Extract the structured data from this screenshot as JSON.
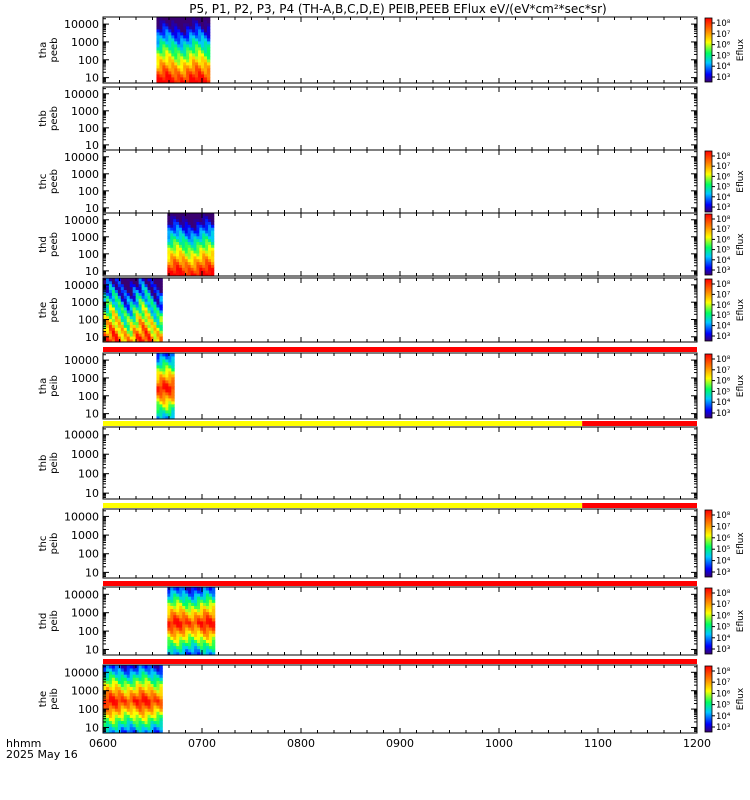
{
  "title": "P5, P1, P2, P3, P4 (TH-A,B,C,D,E) PEIB,PEEB EFlux eV/(eV*cm²*sec*sr)",
  "colors": {
    "panel_frame": "#000000",
    "flag_red": "#ff0000",
    "flag_yellow": "#ffff00"
  },
  "footer": {
    "label_time": "hhmm",
    "label_date": "2025 May 16"
  },
  "chart_data": {
    "type": "heatmap",
    "x_ticks": [
      "0600",
      "0700",
      "0800",
      "0900",
      "1000",
      "1100",
      "1200"
    ],
    "x_range": [
      "0600",
      "1200"
    ],
    "y_scale": "log",
    "y_ticks": [
      "10",
      "100",
      "1000",
      "10000"
    ],
    "colorbar_label": "Eflux",
    "panels": [
      {
        "name": "tha peeb",
        "ylabel": [
          "tha",
          "peeb"
        ],
        "yrange": [
          5,
          25000
        ],
        "colorbar": {
          "min_exp": 3,
          "max_exp": 8,
          "ticks": [
            "10⁸",
            "10⁷",
            "10⁶",
            "10⁵",
            "10⁴",
            "10³"
          ]
        },
        "data_spans": [
          {
            "start": "0654",
            "end": "0708",
            "profile": "hot_low"
          }
        ],
        "flag_above": null
      },
      {
        "name": "thb peeb",
        "ylabel": [
          "thb",
          "peeb"
        ],
        "yrange": [
          5,
          25000
        ],
        "colorbar": null,
        "data_spans": [],
        "flag_above": null
      },
      {
        "name": "thc peeb",
        "ylabel": [
          "thc",
          "peeb"
        ],
        "yrange": [
          5,
          25000
        ],
        "colorbar": {
          "min_exp": 3,
          "max_exp": 8,
          "ticks": [
            "10⁸",
            "10⁷",
            "10⁶",
            "10⁵",
            "10⁴",
            "10³"
          ]
        },
        "data_spans": [],
        "flag_above": null
      },
      {
        "name": "thd peeb",
        "ylabel": [
          "thd",
          "peeb"
        ],
        "yrange": [
          5,
          25000
        ],
        "colorbar": {
          "min_exp": 3,
          "max_exp": 8,
          "ticks": [
            "10⁸",
            "10⁷",
            "10⁶",
            "10⁵",
            "10⁴",
            "10³"
          ]
        },
        "data_spans": [
          {
            "start": "0665",
            "end": "0712",
            "profile": "hot_low"
          }
        ],
        "flag_above": null
      },
      {
        "name": "the peeb",
        "ylabel": [
          "the",
          "peeb"
        ],
        "yrange": [
          5,
          25000
        ],
        "colorbar": {
          "min_exp": 3,
          "max_exp": 8,
          "ticks": [
            "10⁸",
            "10⁷",
            "10⁶",
            "10⁵",
            "10⁴",
            "10³"
          ]
        },
        "data_spans": [
          {
            "start": "0600",
            "end": "0660",
            "profile": "mixed"
          }
        ],
        "flag_above": null
      },
      {
        "name": "tha peib",
        "ylabel": [
          "tha",
          "peib"
        ],
        "yrange": [
          5,
          25000
        ],
        "colorbar": {
          "min_exp": 3,
          "max_exp": 8,
          "ticks": [
            "10⁸",
            "10⁷",
            "10⁶",
            "10⁵",
            "10⁴",
            "10³"
          ]
        },
        "data_spans": [
          {
            "start": "0654",
            "end": "0672",
            "profile": "hot_mid"
          }
        ],
        "flag_above": [
          {
            "start": "0600",
            "end": "1200",
            "color": "red"
          }
        ]
      },
      {
        "name": "thb peib",
        "ylabel": [
          "thb",
          "peib"
        ],
        "yrange": [
          5,
          25000
        ],
        "colorbar": null,
        "data_spans": [],
        "flag_above": [
          {
            "start": "0600",
            "end": "1084",
            "color": "yellow"
          },
          {
            "start": "1084",
            "end": "1200",
            "color": "red"
          }
        ]
      },
      {
        "name": "thc peib",
        "ylabel": [
          "thc",
          "peib"
        ],
        "yrange": [
          5,
          25000
        ],
        "colorbar": {
          "min_exp": 3,
          "max_exp": 8,
          "ticks": [
            "10⁸",
            "10⁷",
            "10⁶",
            "10⁵",
            "10⁴",
            "10³"
          ]
        },
        "data_spans": [],
        "flag_above": [
          {
            "start": "0600",
            "end": "1084",
            "color": "yellow"
          },
          {
            "start": "1084",
            "end": "1200",
            "color": "red"
          }
        ]
      },
      {
        "name": "thd peib",
        "ylabel": [
          "thd",
          "peib"
        ],
        "yrange": [
          5,
          25000
        ],
        "colorbar": {
          "min_exp": 3,
          "max_exp": 8,
          "ticks": [
            "10⁸",
            "10⁷",
            "10⁶",
            "10⁵",
            "10⁴",
            "10³"
          ]
        },
        "data_spans": [
          {
            "start": "0665",
            "end": "0713",
            "profile": "hot_mid"
          }
        ],
        "flag_above": [
          {
            "start": "0600",
            "end": "1200",
            "color": "red"
          }
        ]
      },
      {
        "name": "the peib",
        "ylabel": [
          "the",
          "peib"
        ],
        "yrange": [
          5,
          25000
        ],
        "colorbar": {
          "min_exp": 3,
          "max_exp": 8,
          "ticks": [
            "10⁸",
            "10⁷",
            "10⁶",
            "10⁵",
            "10⁴",
            "10³"
          ]
        },
        "data_spans": [
          {
            "start": "0600",
            "end": "0660",
            "profile": "hot_mid"
          }
        ],
        "flag_above": [
          {
            "start": "0600",
            "end": "1200",
            "color": "red"
          }
        ]
      }
    ]
  }
}
